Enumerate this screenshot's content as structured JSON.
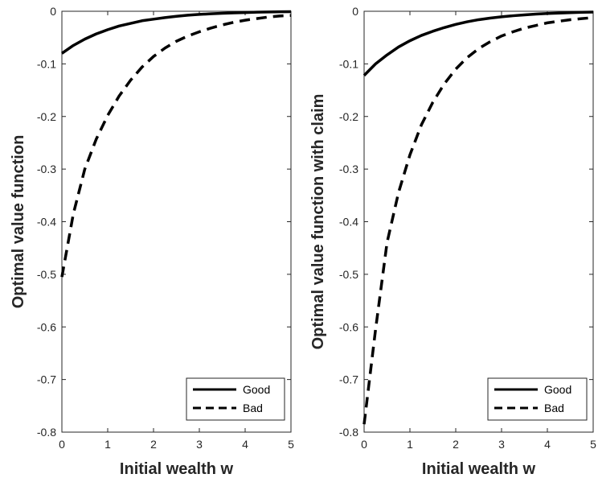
{
  "chart_data": [
    {
      "type": "line",
      "title": "",
      "xlabel": "Initial wealth w",
      "ylabel": "Optimal value function",
      "xlim": [
        0,
        5
      ],
      "ylim": [
        -0.8,
        0
      ],
      "xticks": [
        0,
        1,
        2,
        3,
        4,
        5
      ],
      "yticks": [
        -0.8,
        -0.7,
        -0.6,
        -0.5,
        -0.4,
        -0.3,
        -0.2,
        -0.1,
        0
      ],
      "ytick_labels": [
        "-0.8",
        "-0.7",
        "-0.6",
        "-0.5",
        "-0.4",
        "-0.3",
        "-0.2",
        "-0.1",
        "0"
      ],
      "xtick_labels": [
        "0",
        "1",
        "2",
        "3",
        "4",
        "5"
      ],
      "legend_position": "bottom-right",
      "grid": false,
      "series": [
        {
          "name": "Good",
          "style": "solid",
          "color": "#000000",
          "x": [
            0,
            0.25,
            0.5,
            0.75,
            1,
            1.25,
            1.5,
            1.75,
            2,
            2.25,
            2.5,
            2.75,
            3,
            3.25,
            3.5,
            3.75,
            4,
            4.25,
            4.5,
            4.75,
            5
          ],
          "y": [
            -0.08,
            -0.065,
            -0.053,
            -0.043,
            -0.035,
            -0.028,
            -0.023,
            -0.018,
            -0.015,
            -0.012,
            -0.0095,
            -0.0075,
            -0.006,
            -0.0048,
            -0.0038,
            -0.003,
            -0.0024,
            -0.0018,
            -0.0014,
            -0.001,
            -0.0008
          ]
        },
        {
          "name": "Bad",
          "style": "dashed",
          "color": "#000000",
          "x": [
            0,
            0.25,
            0.5,
            0.75,
            1,
            1.25,
            1.5,
            1.75,
            2,
            2.25,
            2.5,
            2.75,
            3,
            3.25,
            3.5,
            3.75,
            4,
            4.25,
            4.5,
            4.75,
            5
          ],
          "y": [
            -0.505,
            -0.385,
            -0.3,
            -0.243,
            -0.198,
            -0.161,
            -0.131,
            -0.106,
            -0.086,
            -0.07,
            -0.057,
            -0.047,
            -0.039,
            -0.032,
            -0.026,
            -0.021,
            -0.017,
            -0.014,
            -0.011,
            -0.009,
            -0.008
          ]
        }
      ]
    },
    {
      "type": "line",
      "title": "",
      "xlabel": "Initial wealth w",
      "ylabel": "Optimal value function with claim",
      "xlim": [
        0,
        5
      ],
      "ylim": [
        -0.8,
        0
      ],
      "xticks": [
        0,
        1,
        2,
        3,
        4,
        5
      ],
      "yticks": [
        -0.8,
        -0.7,
        -0.6,
        -0.5,
        -0.4,
        -0.3,
        -0.2,
        -0.1,
        0
      ],
      "ytick_labels": [
        "-0.8",
        "-0.7",
        "-0.6",
        "-0.5",
        "-0.4",
        "-0.3",
        "-0.2",
        "-0.1",
        "0"
      ],
      "xtick_labels": [
        "0",
        "1",
        "2",
        "3",
        "4",
        "5"
      ],
      "legend_position": "bottom-right",
      "grid": false,
      "series": [
        {
          "name": "Good",
          "style": "solid",
          "color": "#000000",
          "x": [
            0,
            0.25,
            0.5,
            0.75,
            1,
            1.25,
            1.5,
            1.75,
            2,
            2.25,
            2.5,
            2.75,
            3,
            3.25,
            3.5,
            3.75,
            4,
            4.25,
            4.5,
            4.75,
            5
          ],
          "y": [
            -0.122,
            -0.1,
            -0.083,
            -0.068,
            -0.056,
            -0.046,
            -0.038,
            -0.031,
            -0.025,
            -0.02,
            -0.016,
            -0.013,
            -0.0105,
            -0.0085,
            -0.0068,
            -0.0054,
            -0.0043,
            -0.0034,
            -0.0027,
            -0.002,
            -0.0015
          ]
        },
        {
          "name": "Bad",
          "style": "dashed",
          "color": "#000000",
          "x": [
            0,
            0.25,
            0.5,
            0.75,
            1,
            1.25,
            1.5,
            1.75,
            2,
            2.25,
            2.5,
            2.75,
            3,
            3.25,
            3.5,
            3.75,
            4,
            4.25,
            4.5,
            4.75,
            5
          ],
          "y": [
            -0.785,
            -0.605,
            -0.44,
            -0.345,
            -0.273,
            -0.216,
            -0.173,
            -0.138,
            -0.11,
            -0.088,
            -0.071,
            -0.058,
            -0.047,
            -0.039,
            -0.032,
            -0.027,
            -0.022,
            -0.019,
            -0.016,
            -0.014,
            -0.012
          ]
        }
      ]
    }
  ]
}
